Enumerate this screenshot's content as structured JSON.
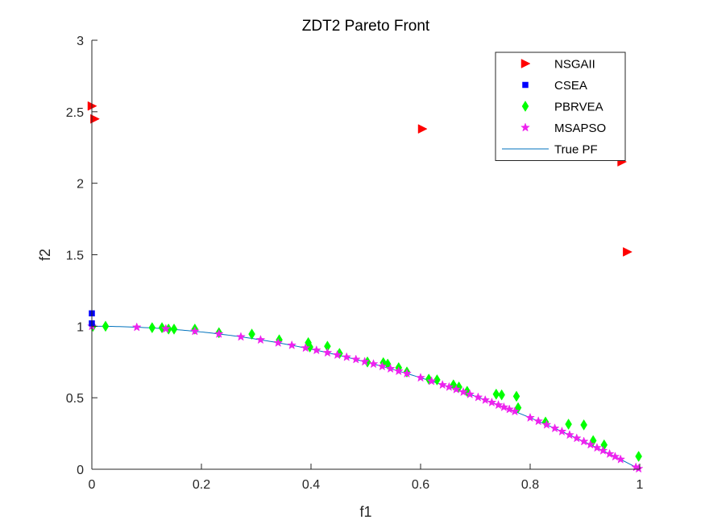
{
  "chart_data": {
    "type": "scatter",
    "title": "ZDT2 Pareto Front",
    "xlabel": "f1",
    "ylabel": "f2",
    "xlim": [
      0,
      1
    ],
    "ylim": [
      0,
      3
    ],
    "xticks": [
      "0",
      "0.2",
      "0.4",
      "0.6",
      "0.8",
      "1"
    ],
    "yticks": [
      "0",
      "0.5",
      "1",
      "1.5",
      "2",
      "2.5",
      "3"
    ],
    "grid": false,
    "legend_position": "top-right",
    "series": [
      {
        "name": "NSGAII",
        "marker": "triangle-right",
        "color": "#ff0000",
        "points": [
          [
            0.0,
            2.54
          ],
          [
            0.005,
            2.45
          ],
          [
            0.603,
            2.38
          ],
          [
            0.967,
            2.15
          ],
          [
            0.977,
            1.52
          ]
        ]
      },
      {
        "name": "CSEA",
        "marker": "square",
        "color": "#0000ff",
        "points": [
          [
            0.0,
            1.09
          ],
          [
            0.0,
            1.02
          ]
        ]
      },
      {
        "name": "PBRVEA",
        "marker": "diamond",
        "color": "#00ff00",
        "points": [
          [
            0.002,
            1.0
          ],
          [
            0.025,
            1.0
          ],
          [
            0.11,
            0.99
          ],
          [
            0.128,
            0.99
          ],
          [
            0.14,
            0.98
          ],
          [
            0.15,
            0.98
          ],
          [
            0.188,
            0.98
          ],
          [
            0.232,
            0.955
          ],
          [
            0.292,
            0.945
          ],
          [
            0.342,
            0.905
          ],
          [
            0.395,
            0.885
          ],
          [
            0.398,
            0.855
          ],
          [
            0.43,
            0.86
          ],
          [
            0.452,
            0.81
          ],
          [
            0.503,
            0.75
          ],
          [
            0.532,
            0.745
          ],
          [
            0.54,
            0.735
          ],
          [
            0.56,
            0.71
          ],
          [
            0.575,
            0.68
          ],
          [
            0.615,
            0.63
          ],
          [
            0.63,
            0.625
          ],
          [
            0.66,
            0.59
          ],
          [
            0.67,
            0.575
          ],
          [
            0.685,
            0.545
          ],
          [
            0.738,
            0.525
          ],
          [
            0.748,
            0.52
          ],
          [
            0.775,
            0.51
          ],
          [
            0.778,
            0.43
          ],
          [
            0.828,
            0.33
          ],
          [
            0.87,
            0.315
          ],
          [
            0.898,
            0.31
          ],
          [
            0.915,
            0.2
          ],
          [
            0.935,
            0.17
          ],
          [
            0.998,
            0.09
          ]
        ]
      },
      {
        "name": "MSAPSO",
        "marker": "star",
        "color": "#ee22ee",
        "points": [
          [
            0.0,
            1.0
          ],
          [
            0.082,
            0.993
          ],
          [
            0.135,
            0.982
          ],
          [
            0.188,
            0.965
          ],
          [
            0.232,
            0.946
          ],
          [
            0.272,
            0.926
          ],
          [
            0.308,
            0.905
          ],
          [
            0.34,
            0.884
          ],
          [
            0.365,
            0.867
          ],
          [
            0.39,
            0.848
          ],
          [
            0.41,
            0.832
          ],
          [
            0.43,
            0.815
          ],
          [
            0.448,
            0.799
          ],
          [
            0.465,
            0.784
          ],
          [
            0.482,
            0.768
          ],
          [
            0.498,
            0.752
          ],
          [
            0.514,
            0.736
          ],
          [
            0.53,
            0.719
          ],
          [
            0.545,
            0.703
          ],
          [
            0.56,
            0.686
          ],
          [
            0.575,
            0.669
          ],
          [
            0.6,
            0.64
          ],
          [
            0.62,
            0.616
          ],
          [
            0.64,
            0.59
          ],
          [
            0.652,
            0.575
          ],
          [
            0.665,
            0.558
          ],
          [
            0.678,
            0.54
          ],
          [
            0.69,
            0.524
          ],
          [
            0.705,
            0.503
          ],
          [
            0.718,
            0.484
          ],
          [
            0.73,
            0.467
          ],
          [
            0.742,
            0.449
          ],
          [
            0.752,
            0.434
          ],
          [
            0.762,
            0.419
          ],
          [
            0.772,
            0.404
          ],
          [
            0.8,
            0.36
          ],
          [
            0.815,
            0.336
          ],
          [
            0.83,
            0.311
          ],
          [
            0.845,
            0.286
          ],
          [
            0.858,
            0.264
          ],
          [
            0.872,
            0.24
          ],
          [
            0.885,
            0.217
          ],
          [
            0.898,
            0.194
          ],
          [
            0.91,
            0.172
          ],
          [
            0.922,
            0.15
          ],
          [
            0.933,
            0.13
          ],
          [
            0.945,
            0.107
          ],
          [
            0.955,
            0.088
          ],
          [
            0.965,
            0.069
          ],
          [
            0.993,
            0.014
          ],
          [
            0.998,
            0.004
          ]
        ]
      },
      {
        "name": "True PF",
        "marker": "line",
        "color": "#0072bd",
        "function": "f2 = 1 - f1^2"
      }
    ]
  }
}
